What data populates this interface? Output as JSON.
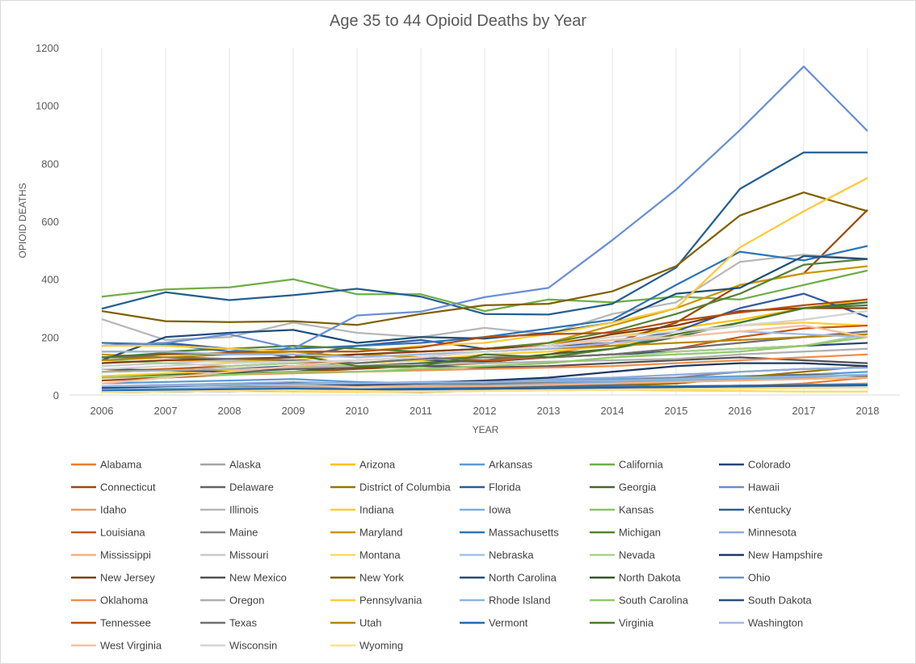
{
  "chart_data": {
    "type": "line",
    "title": "Age 35 to 44 Opioid Deaths by Year",
    "xlabel": "YEAR",
    "ylabel": "OPIOID DEATHS",
    "ylim": [
      0,
      1200
    ],
    "yticks": [
      0,
      200,
      400,
      600,
      800,
      1000,
      1200
    ],
    "x": [
      "2006",
      "2007",
      "2008",
      "2009",
      "2010",
      "2011",
      "2012",
      "2013",
      "2014",
      "2015",
      "2016",
      "2017",
      "2018"
    ],
    "grid": "vertical",
    "legend_position": "bottom",
    "series": [
      {
        "name": "Alabama",
        "color": "#ED7D31",
        "values": [
          null,
          null,
          null,
          null,
          null,
          null,
          null,
          null,
          20,
          25,
          30,
          40,
          60
        ]
      },
      {
        "name": "Alaska",
        "color": "#A5A5A5",
        "values": [
          null,
          null,
          null,
          null,
          null,
          null,
          null,
          null,
          null,
          null,
          null,
          null,
          null
        ]
      },
      {
        "name": "Arizona",
        "color": "#FFC000",
        "values": [
          110,
          120,
          115,
          120,
          140,
          150,
          160,
          180,
          200,
          230,
          260,
          300,
          330
        ]
      },
      {
        "name": "Arkansas",
        "color": "#5B9BD5",
        "values": [
          40,
          45,
          50,
          55,
          45,
          40,
          45,
          50,
          55,
          60,
          65,
          70,
          80
        ]
      },
      {
        "name": "California",
        "color": "#70AD47",
        "values": [
          340,
          365,
          372,
          400,
          348,
          348,
          290,
          330,
          320,
          340,
          330,
          380,
          430
        ]
      },
      {
        "name": "Colorado",
        "color": "#264478",
        "values": [
          80,
          85,
          90,
          100,
          110,
          120,
          115,
          130,
          140,
          150,
          160,
          170,
          180
        ]
      },
      {
        "name": "Connecticut",
        "color": "#9E480E",
        "values": [
          50,
          60,
          70,
          80,
          90,
          100,
          110,
          140,
          180,
          250,
          380,
          420,
          640
        ]
      },
      {
        "name": "Delaware",
        "color": "#636363",
        "values": [
          15,
          20,
          22,
          25,
          20,
          22,
          25,
          30,
          35,
          40,
          60,
          70,
          65
        ]
      },
      {
        "name": "District of Columbia",
        "color": "#997300",
        "values": [
          10,
          12,
          14,
          15,
          12,
          10,
          15,
          20,
          30,
          40,
          60,
          80,
          100
        ]
      },
      {
        "name": "Florida",
        "color": "#255E91",
        "values": [
          298,
          355,
          328,
          345,
          367,
          340,
          280,
          278,
          315,
          440,
          712,
          838,
          838
        ]
      },
      {
        "name": "Georgia",
        "color": "#43682B",
        "values": [
          60,
          70,
          75,
          80,
          100,
          110,
          120,
          140,
          160,
          200,
          250,
          300,
          320
        ]
      },
      {
        "name": "Hawaii",
        "color": "#698ED0",
        "values": [
          20,
          22,
          24,
          20,
          18,
          20,
          22,
          25,
          28,
          30,
          32,
          35,
          38
        ]
      },
      {
        "name": "Idaho",
        "color": "#F1975A",
        "values": [
          15,
          18,
          20,
          22,
          20,
          22,
          24,
          26,
          28,
          30,
          32,
          35,
          40
        ]
      },
      {
        "name": "Illinois",
        "color": "#B7B7B7",
        "values": [
          262,
          190,
          200,
          250,
          215,
          200,
          232,
          210,
          280,
          320,
          460,
          485,
          470
        ]
      },
      {
        "name": "Indiana",
        "color": "#FFCD33",
        "values": [
          65,
          75,
          85,
          95,
          110,
          120,
          140,
          150,
          170,
          210,
          240,
          250,
          240
        ]
      },
      {
        "name": "Iowa",
        "color": "#7CAFDD",
        "values": [
          20,
          22,
          25,
          28,
          30,
          32,
          35,
          40,
          45,
          50,
          55,
          60,
          70
        ]
      },
      {
        "name": "Kansas",
        "color": "#8CC168",
        "values": [
          30,
          32,
          35,
          38,
          40,
          42,
          45,
          48,
          50,
          55,
          60,
          65,
          70
        ]
      },
      {
        "name": "Kentucky",
        "color": "#335AA1",
        "values": [
          170,
          180,
          160,
          130,
          170,
          190,
          160,
          170,
          180,
          220,
          300,
          350,
          270
        ]
      },
      {
        "name": "Louisiana",
        "color": "#C55A11",
        "values": [
          80,
          90,
          100,
          110,
          120,
          130,
          120,
          130,
          140,
          160,
          200,
          230,
          240
        ]
      },
      {
        "name": "Maine",
        "color": "#848484",
        "values": [
          30,
          35,
          32,
          30,
          35,
          40,
          38,
          45,
          50,
          60,
          80,
          90,
          95
        ]
      },
      {
        "name": "Maryland",
        "color": "#C99800",
        "values": [
          140,
          130,
          120,
          130,
          140,
          130,
          150,
          180,
          240,
          300,
          380,
          420,
          445
        ]
      },
      {
        "name": "Massachusetts",
        "color": "#2E75B6",
        "values": [
          180,
          175,
          150,
          160,
          170,
          180,
          200,
          230,
          260,
          380,
          495,
          465,
          515
        ]
      },
      {
        "name": "Michigan",
        "color": "#548235",
        "values": [
          150,
          150,
          160,
          170,
          160,
          150,
          160,
          180,
          220,
          280,
          350,
          450,
          470
        ]
      },
      {
        "name": "Minnesota",
        "color": "#8FAADC",
        "values": [
          30,
          35,
          40,
          45,
          40,
          45,
          50,
          55,
          60,
          70,
          80,
          90,
          95
        ]
      },
      {
        "name": "Mississippi",
        "color": "#F4B183",
        "values": [
          30,
          32,
          35,
          33,
          30,
          28,
          30,
          35,
          40,
          45,
          50,
          55,
          60
        ]
      },
      {
        "name": "Missouri",
        "color": "#C9C9C9",
        "values": [
          100,
          110,
          120,
          130,
          140,
          150,
          160,
          170,
          190,
          210,
          240,
          260,
          290
        ]
      },
      {
        "name": "Montana",
        "color": "#FFD966",
        "values": [
          10,
          12,
          14,
          12,
          10,
          12,
          14,
          16,
          18,
          15,
          14,
          12,
          12
        ]
      },
      {
        "name": "Nebraska",
        "color": "#9DC3E6",
        "values": [
          10,
          12,
          14,
          16,
          15,
          14,
          16,
          18,
          20,
          22,
          24,
          26,
          28
        ]
      },
      {
        "name": "Nevada",
        "color": "#A9D18E",
        "values": [
          120,
          110,
          100,
          110,
          100,
          90,
          100,
          110,
          130,
          150,
          160,
          170,
          210
        ]
      },
      {
        "name": "New Hampshire",
        "color": "#203864",
        "values": [
          25,
          30,
          35,
          40,
          35,
          40,
          50,
          60,
          80,
          100,
          110,
          110,
          100
        ]
      },
      {
        "name": "New Jersey",
        "color": "#843C0C",
        "values": [
          110,
          120,
          125,
          130,
          140,
          150,
          160,
          170,
          210,
          240,
          290,
          300,
          300
        ]
      },
      {
        "name": "New Mexico",
        "color": "#525252",
        "values": [
          90,
          85,
          80,
          90,
          95,
          100,
          95,
          100,
          110,
          120,
          130,
          120,
          110
        ]
      },
      {
        "name": "New York",
        "color": "#7F6000",
        "values": [
          290,
          255,
          252,
          255,
          242,
          280,
          310,
          315,
          358,
          445,
          620,
          700,
          635
        ]
      },
      {
        "name": "North Carolina",
        "color": "#1F4E79",
        "values": [
          120,
          200,
          215,
          225,
          180,
          200,
          195,
          215,
          250,
          350,
          370,
          480,
          470
        ]
      },
      {
        "name": "North Dakota",
        "color": "#375623",
        "values": [
          10,
          12,
          14,
          16,
          18,
          20,
          22,
          24,
          26,
          28,
          30,
          32,
          34
        ]
      },
      {
        "name": "Ohio",
        "color": "#6A8FD4",
        "values": [
          170,
          180,
          210,
          160,
          275,
          288,
          338,
          370,
          535,
          710,
          915,
          1135,
          912
        ]
      },
      {
        "name": "Oklahoma",
        "color": "#EE8F4F",
        "values": [
          60,
          65,
          70,
          75,
          80,
          85,
          90,
          95,
          100,
          110,
          120,
          130,
          140
        ]
      },
      {
        "name": "Oregon",
        "color": "#AFAFAF",
        "values": [
          80,
          85,
          90,
          95,
          100,
          105,
          110,
          115,
          120,
          125,
          140,
          150,
          160
        ]
      },
      {
        "name": "Pennsylvania",
        "color": "#FFC93B",
        "values": [
          170,
          170,
          160,
          150,
          150,
          170,
          180,
          210,
          250,
          300,
          510,
          635,
          750
        ]
      },
      {
        "name": "Rhode Island",
        "color": "#8DB4E2",
        "values": [
          30,
          32,
          35,
          38,
          40,
          42,
          45,
          48,
          50,
          55,
          60,
          65,
          70
        ]
      },
      {
        "name": "South Carolina",
        "color": "#92C96B",
        "values": [
          60,
          65,
          70,
          80,
          80,
          90,
          100,
          110,
          130,
          140,
          150,
          170,
          200
        ]
      },
      {
        "name": "South Dakota",
        "color": "#2B4C84",
        "values": [
          10,
          12,
          14,
          16,
          18,
          20,
          22,
          24,
          26,
          28,
          30,
          32,
          34
        ]
      },
      {
        "name": "Tennessee",
        "color": "#B34F0E",
        "values": [
          130,
          140,
          145,
          150,
          150,
          165,
          200,
          210,
          215,
          255,
          285,
          310,
          330
        ]
      },
      {
        "name": "Texas",
        "color": "#6F6F6F",
        "values": [
          130,
          130,
          125,
          120,
          110,
          125,
          130,
          130,
          140,
          160,
          180,
          200,
          220
        ]
      },
      {
        "name": "Utah",
        "color": "#B68600",
        "values": [
          120,
          130,
          140,
          150,
          130,
          140,
          150,
          160,
          170,
          180,
          190,
          200,
          210
        ]
      },
      {
        "name": "Vermont",
        "color": "#1F6AAF",
        "values": [
          15,
          18,
          20,
          22,
          20,
          22,
          24,
          26,
          28,
          30,
          32,
          34,
          36
        ]
      },
      {
        "name": "Virginia",
        "color": "#4A7A2C",
        "values": [
          130,
          145,
          140,
          140,
          100,
          100,
          140,
          130,
          160,
          210,
          250,
          300,
          310
        ]
      },
      {
        "name": "Washington",
        "color": "#A4B8E4",
        "values": [
          150,
          150,
          140,
          140,
          130,
          140,
          150,
          160,
          180,
          200,
          220,
          210,
          200
        ]
      },
      {
        "name": "West Virginia",
        "color": "#F6BFA0",
        "values": [
          40,
          60,
          80,
          100,
          120,
          130,
          150,
          170,
          190,
          200,
          220,
          240,
          200
        ]
      },
      {
        "name": "Wisconsin",
        "color": "#D5D5D5",
        "values": [
          90,
          100,
          110,
          115,
          120,
          130,
          150,
          170,
          200,
          220,
          240,
          260,
          290
        ]
      },
      {
        "name": "Wyoming",
        "color": "#FFE08A",
        "values": [
          10,
          12,
          14,
          16,
          14,
          12,
          14,
          16,
          18,
          20,
          22,
          24,
          26
        ]
      }
    ]
  }
}
